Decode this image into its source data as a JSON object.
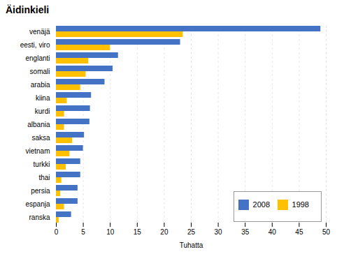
{
  "chart_data": {
    "type": "bar",
    "orientation": "horizontal",
    "title": "Äidinkieli",
    "xlabel": "Tuhatta",
    "categories": [
      "venäjä",
      "eesti, viro",
      "englanti",
      "somali",
      "arabia",
      "kiina",
      "kurdi",
      "albania",
      "saksa",
      "vietnam",
      "turkki",
      "thai",
      "persia",
      "espanja",
      "ranska"
    ],
    "series": [
      {
        "name": "2008",
        "color": "#4472c4",
        "values": [
          49,
          23,
          11.5,
          10.5,
          9,
          6.5,
          6.3,
          6.2,
          5.2,
          5.0,
          4.5,
          4.5,
          4.0,
          4.0,
          2.8
        ]
      },
      {
        "name": "1998",
        "color": "#ffc000",
        "values": [
          23.5,
          10,
          6,
          5.5,
          4.5,
          2.0,
          1.5,
          1.5,
          3.0,
          2.5,
          1.8,
          1.0,
          0.8,
          1.5,
          0.5
        ]
      }
    ],
    "xlim": [
      0,
      50
    ],
    "xticks": [
      0,
      5,
      10,
      15,
      20,
      25,
      30,
      35,
      40,
      45,
      50
    ],
    "grid": true,
    "legend": "lower right"
  }
}
